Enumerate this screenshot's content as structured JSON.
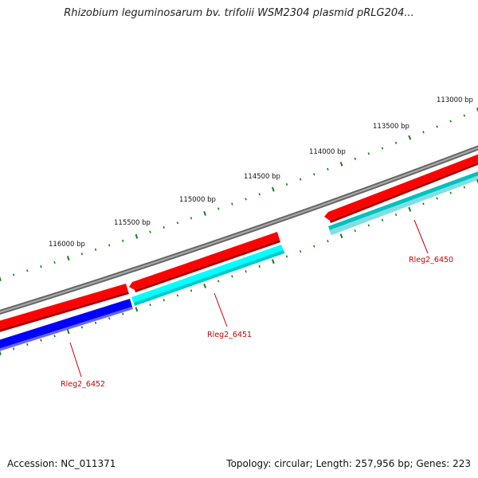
{
  "title": "Rhizobium leguminosarum bv. trifolii WSM2304 plasmid pRLG204...",
  "footer": {
    "accession": "Accession: NC_011371",
    "summary": "Topology: circular; Length: 257,956 bp; Genes: 223"
  },
  "colors": {
    "backbone": "#888888",
    "forward_gene": "#ff0000",
    "cds_light": "#00ffff",
    "cds_dark": "#00c0c0",
    "reverse_gene": "#0000ff",
    "ticks": "#1a7a1a",
    "gene_label": "#cc0000"
  },
  "scale_labels": [
    "113000 bp",
    "113500 bp",
    "114000 bp",
    "114500 bp",
    "115000 bp",
    "115500 bp",
    "116000 bp"
  ],
  "gene_labels": [
    "Rleg2_6450",
    "Rleg2_6451",
    "Rleg2_6452"
  ]
}
